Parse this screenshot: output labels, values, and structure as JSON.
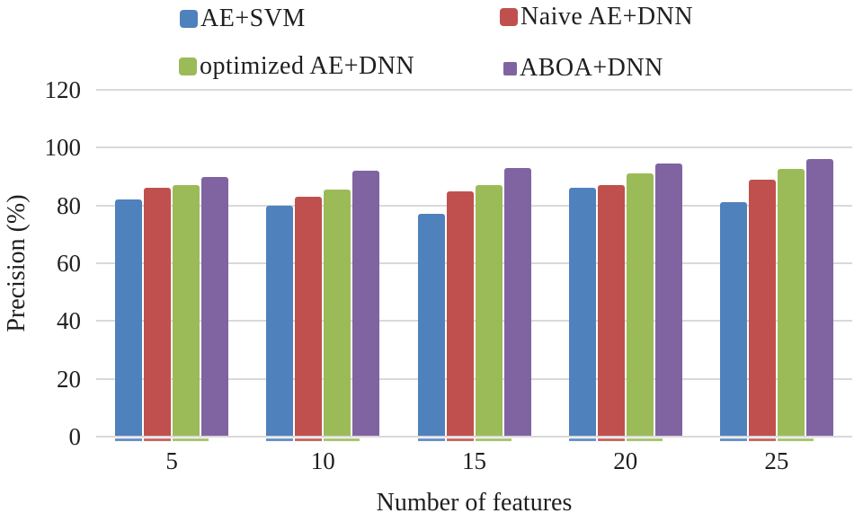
{
  "chart_data": {
    "type": "bar",
    "title": "",
    "xlabel": "Number of features",
    "ylabel": "Precision (%)",
    "categories": [
      "5",
      "10",
      "15",
      "20",
      "25"
    ],
    "series": [
      {
        "name": "AE+SVM",
        "color": "#4F81BD",
        "values": [
          82,
          80,
          77,
          86,
          81
        ]
      },
      {
        "name": "Naive AE+DNN",
        "color": "#C0504D",
        "values": [
          86,
          83,
          85,
          87,
          89
        ]
      },
      {
        "name": "optimized AE+DNN",
        "color": "#9BBB59",
        "values": [
          87,
          85.5,
          87,
          91,
          92.5
        ]
      },
      {
        "name": "ABOA+DNN",
        "color": "#8064A2",
        "values": [
          90,
          92,
          93,
          94.5,
          96
        ]
      }
    ],
    "ylim": [
      0,
      120
    ],
    "yticks": [
      120,
      100,
      80,
      60,
      40,
      20,
      0
    ],
    "grid": true,
    "legend_position": "top",
    "colors": {
      "gridline": "#d9d9d9",
      "text": "#1f1f1f",
      "background": "#ffffff"
    }
  }
}
